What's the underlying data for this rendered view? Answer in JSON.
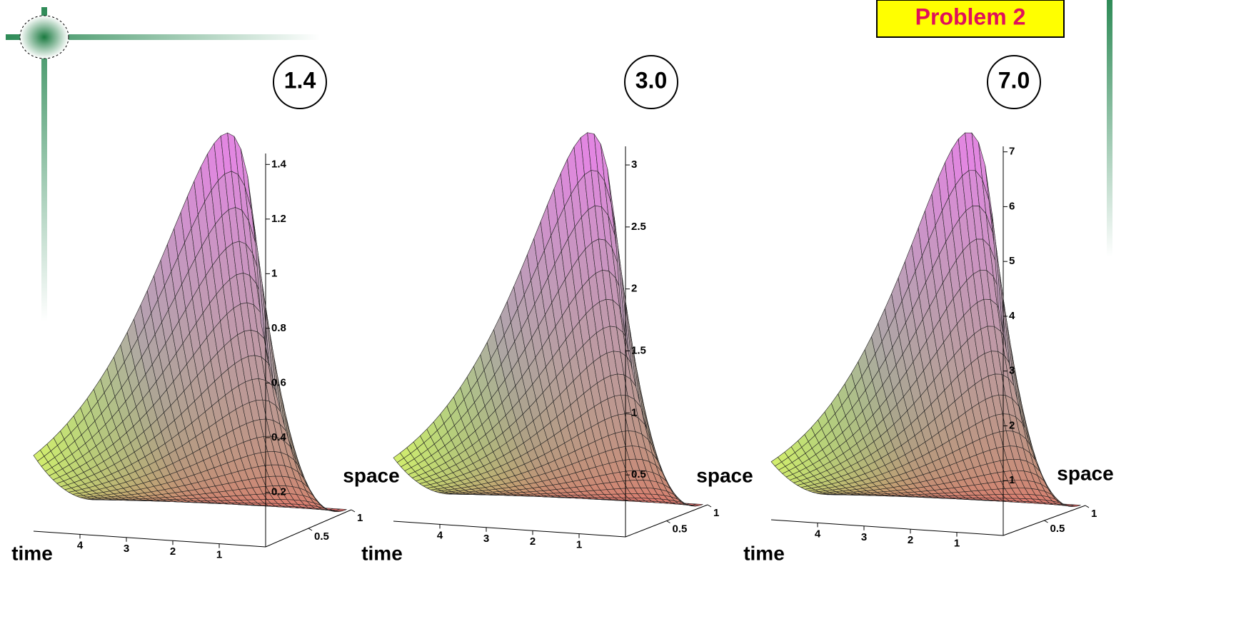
{
  "header": {
    "badge": "Problem 2"
  },
  "chart_data": [
    {
      "type": "surface",
      "title": "1.4",
      "xlabel": "time",
      "ylabel": "space",
      "xlim": [
        0,
        5
      ],
      "xticks": [
        1,
        2,
        3,
        4
      ],
      "ylim": [
        0,
        1
      ],
      "yticks": [
        0.5,
        1
      ],
      "zlim": [
        0,
        1.44
      ],
      "zticks": [
        0.2,
        0.4,
        0.6,
        0.8,
        1,
        1.2,
        1.4
      ]
    },
    {
      "type": "surface",
      "title": "3.0",
      "xlabel": "time",
      "ylabel": "space",
      "xlim": [
        0,
        5
      ],
      "xticks": [
        1,
        2,
        3,
        4
      ],
      "ylim": [
        0,
        1
      ],
      "yticks": [
        0.5,
        1
      ],
      "zlim": [
        0,
        3.15
      ],
      "zticks": [
        0.5,
        1,
        1.5,
        2,
        2.5,
        3
      ]
    },
    {
      "type": "surface",
      "title": "7.0",
      "xlabel": "time",
      "ylabel": "space",
      "xlim": [
        0,
        5
      ],
      "xticks": [
        1,
        2,
        3,
        4
      ],
      "ylim": [
        0,
        1
      ],
      "yticks": [
        0.5,
        1
      ],
      "zlim": [
        0,
        7.1
      ],
      "zticks": [
        1,
        2,
        3,
        4,
        5,
        6,
        7
      ]
    }
  ]
}
